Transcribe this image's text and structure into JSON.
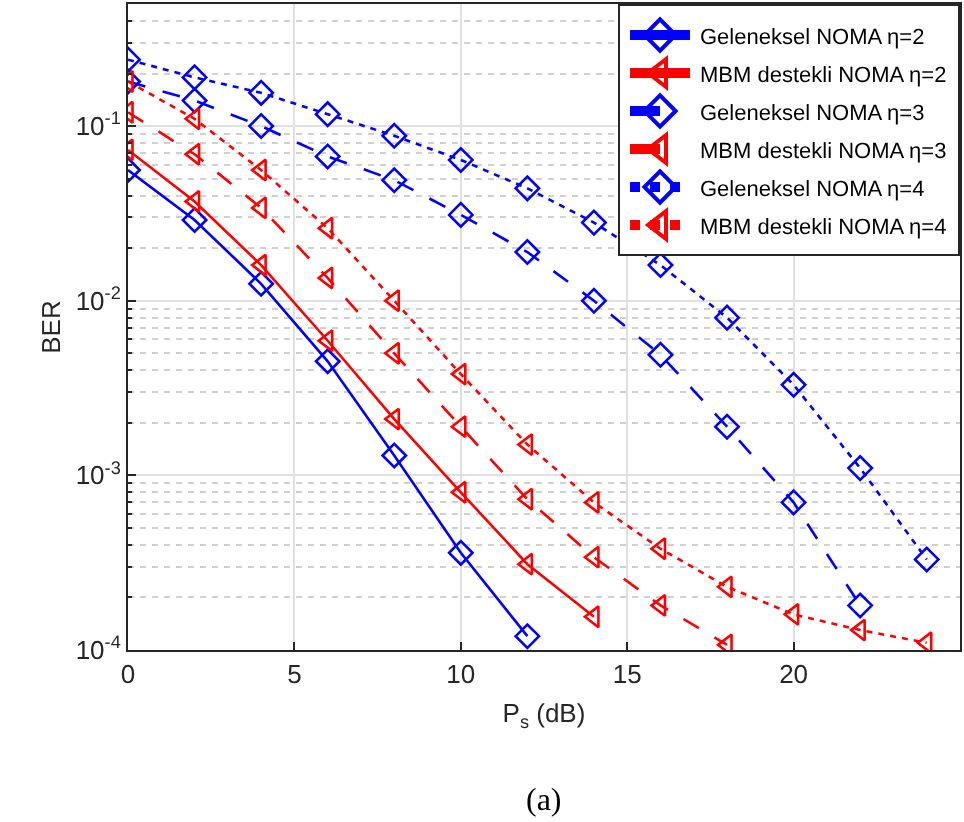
{
  "chart_data": {
    "type": "line",
    "xlabel": "P$_{s}$ (dB)",
    "ylabel": "BER",
    "log": "y",
    "grid": true,
    "legend": "top right",
    "xlim": [
      0,
      25
    ],
    "xticks": [
      0,
      5,
      10,
      15,
      20
    ],
    "ylim": [
      0.0001,
      0.5
    ],
    "yticks": [
      {
        "value": 0.0001,
        "label": "10$^{-4}$"
      },
      {
        "value": 0.001,
        "label": "10$^{-3}$"
      },
      {
        "value": 0.01,
        "label": "10$^{-2}$"
      },
      {
        "value": 0.1,
        "label": "10$^{-1}$"
      }
    ],
    "annotations": [
      "(a)"
    ],
    "series": [
      {
        "name": "Geleneksel NOMA η=2",
        "color": "#0000ff",
        "marker": "diamond",
        "line_style": "solid",
        "x": [
          0,
          2,
          4,
          6,
          8,
          10,
          12
        ],
        "values": [
          0.056,
          0.029,
          0.0125,
          0.0045,
          0.0013,
          0.00036,
          0.00012
        ]
      },
      {
        "name": "MBM destekli NOMA η=2",
        "color": "#ff0000",
        "marker": "triangle",
        "line_style": "solid",
        "x": [
          0,
          2,
          4,
          6,
          8,
          10,
          12,
          14
        ],
        "values": [
          0.073,
          0.037,
          0.016,
          0.0059,
          0.0021,
          0.0008,
          0.00031,
          0.000155
        ]
      },
      {
        "name": "Geleneksel NOMA η=3",
        "color": "#0000ff",
        "marker": "diamond",
        "line_style": "dashed",
        "x": [
          0,
          2,
          4,
          6,
          8,
          10,
          12,
          14,
          16,
          18,
          20,
          22
        ],
        "values": [
          0.18,
          0.14,
          0.1,
          0.067,
          0.049,
          0.031,
          0.019,
          0.01,
          0.0049,
          0.0019,
          0.0007,
          0.00018
        ]
      },
      {
        "name": "MBM destekli NOMA η=3",
        "color": "#ff0000",
        "marker": "triangle",
        "line_style": "dashed",
        "x": [
          0,
          2,
          4,
          6,
          8,
          10,
          12,
          14,
          16,
          18
        ],
        "values": [
          0.12,
          0.069,
          0.034,
          0.0135,
          0.005,
          0.0019,
          0.00073,
          0.00034,
          0.00018,
          0.000107
        ]
      },
      {
        "name": "Geleneksel NOMA η=4",
        "color": "#0000ff",
        "marker": "diamond",
        "line_style": "dotted",
        "x": [
          0,
          2,
          4,
          6,
          8,
          10,
          12,
          14,
          16,
          18,
          20,
          22,
          24
        ],
        "values": [
          0.24,
          0.19,
          0.155,
          0.117,
          0.088,
          0.064,
          0.044,
          0.028,
          0.016,
          0.008,
          0.0033,
          0.0011,
          0.00033
        ]
      },
      {
        "name": "MBM destekli NOMA η=4",
        "color": "#ff0000",
        "marker": "triangle",
        "line_style": "dotted",
        "x": [
          0,
          2,
          4,
          6,
          8,
          10,
          12,
          14,
          16,
          18,
          20,
          22,
          24
        ],
        "values": [
          0.18,
          0.11,
          0.056,
          0.026,
          0.01,
          0.0038,
          0.0015,
          0.0007,
          0.00038,
          0.00023,
          0.00016,
          0.00013,
          0.00011
        ]
      }
    ]
  }
}
